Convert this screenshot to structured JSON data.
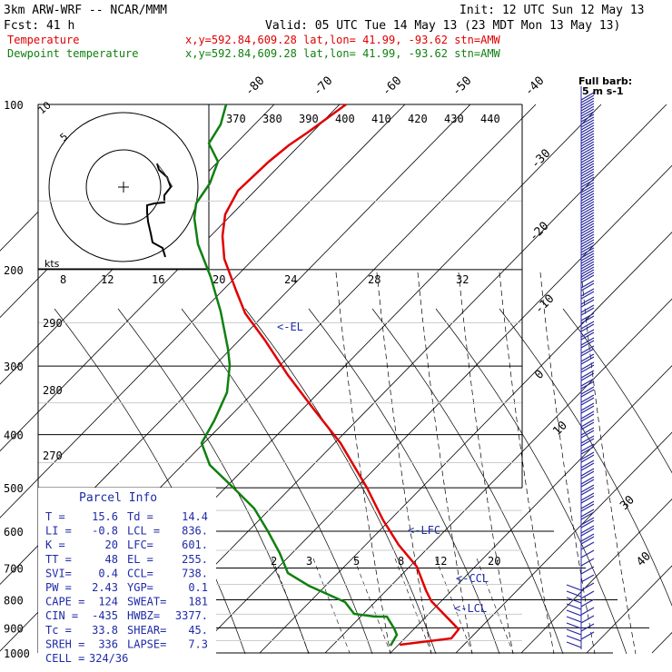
{
  "header": {
    "model_line": "3km ARW-WRF -- NCAR/MMM",
    "init_line": "Init: 12 UTC Sun 12 May 13",
    "fcst_line": "Fcst:    41 h",
    "valid_line": "Valid: 05 UTC Tue 14 May 13 (23 MDT Mon 13 May 13)",
    "temp_label": "Temperature",
    "temp_loc": "x,y=592.84,609.28   lat,lon= 41.99, -93.62  stn=AMW",
    "dewp_label": "Dewpoint temperature",
    "dewp_loc": "x,y=592.84,609.28   lat,lon= 41.99, -93.62  stn=AMW"
  },
  "colors": {
    "temperature": "#e00000",
    "dewpoint": "#108010",
    "info_text": "#1f2aa8",
    "barbs": "#2828a0"
  },
  "chart_data": {
    "type": "line",
    "title": "",
    "pressure_levels": [
      100,
      200,
      300,
      400,
      500,
      600,
      700,
      800,
      900,
      1000
    ],
    "series": [
      {
        "name": "Temperature",
        "points": [
          [
            100,
            -65
          ],
          [
            115,
            -61
          ],
          [
            140,
            -58
          ],
          [
            160,
            -59
          ],
          [
            180,
            -63
          ],
          [
            200,
            -64
          ],
          [
            250,
            -54
          ],
          [
            300,
            -42
          ],
          [
            400,
            -25
          ],
          [
            500,
            -13
          ],
          [
            600,
            -5
          ],
          [
            700,
            3
          ],
          [
            800,
            9
          ],
          [
            880,
            16
          ],
          [
            935,
            18
          ],
          [
            955,
            8
          ]
        ]
      },
      {
        "name": "Dewpoint temperature",
        "points": [
          [
            100,
            -79
          ],
          [
            150,
            -85
          ],
          [
            175,
            -91
          ],
          [
            200,
            -88
          ],
          [
            250,
            -78
          ],
          [
            300,
            -70
          ],
          [
            400,
            -64
          ],
          [
            450,
            -52
          ],
          [
            500,
            -40
          ],
          [
            600,
            -30
          ],
          [
            700,
            -21
          ],
          [
            800,
            -10
          ],
          [
            850,
            -1
          ],
          [
            895,
            7
          ],
          [
            920,
            10
          ],
          [
            955,
            9
          ]
        ]
      }
    ],
    "isotherm_labels": [
      "-80",
      "-70",
      "-60",
      "-50",
      "-40",
      "-30",
      "-20",
      "-10",
      "0",
      "10",
      "20",
      "30",
      "40"
    ],
    "theta_e_labels": [
      "370",
      "380",
      "390",
      "400",
      "410",
      "420",
      "430",
      "440"
    ],
    "hodograph_speed_labels": [
      "8",
      "12",
      "16",
      "20",
      "24",
      "28",
      "32"
    ],
    "hodograph_units": "kts",
    "dry_adiabat_labels": [
      "290",
      "280",
      "270"
    ],
    "mixing_ratio_labels": [
      "2",
      "3",
      "5",
      "8",
      "12",
      "20"
    ],
    "annotations": {
      "el": "<-EL",
      "lfc": "<-LFC",
      "ccl": "<-CCL",
      "lcl": "<-LCL",
      "full_barb": "Full barb:",
      "full_barb_value": "5 m s-1"
    },
    "hodograph_rings": [
      {
        "label": "10",
        "r_kts": 10
      },
      {
        "label": "5",
        "r_kts": 5
      }
    ]
  },
  "parcel_info": {
    "title": "Parcel Info",
    "rows": [
      [
        "T  =",
        "15.6",
        "Td =",
        "14.4"
      ],
      [
        "LI =",
        "-0.8",
        "LCL =",
        "836."
      ],
      [
        "K  =",
        "20",
        "LFC=",
        "601."
      ],
      [
        "TT =",
        "48",
        "EL =",
        "255."
      ],
      [
        "SVI=",
        "0.4",
        "CCL=",
        "738."
      ],
      [
        "PW =",
        "2.43",
        "YGP=",
        "0.1"
      ],
      [
        "CAPE =",
        "124",
        "SWEAT=",
        "181"
      ],
      [
        "CIN =",
        "-435",
        "HWBZ=",
        "3377."
      ],
      [
        "Tc =",
        "33.8",
        "SHEAR=",
        "45."
      ],
      [
        "SREH =",
        "336",
        "LAPSE=",
        "7.3"
      ],
      [
        "CELL =",
        "324/36",
        "",
        ""
      ]
    ]
  }
}
